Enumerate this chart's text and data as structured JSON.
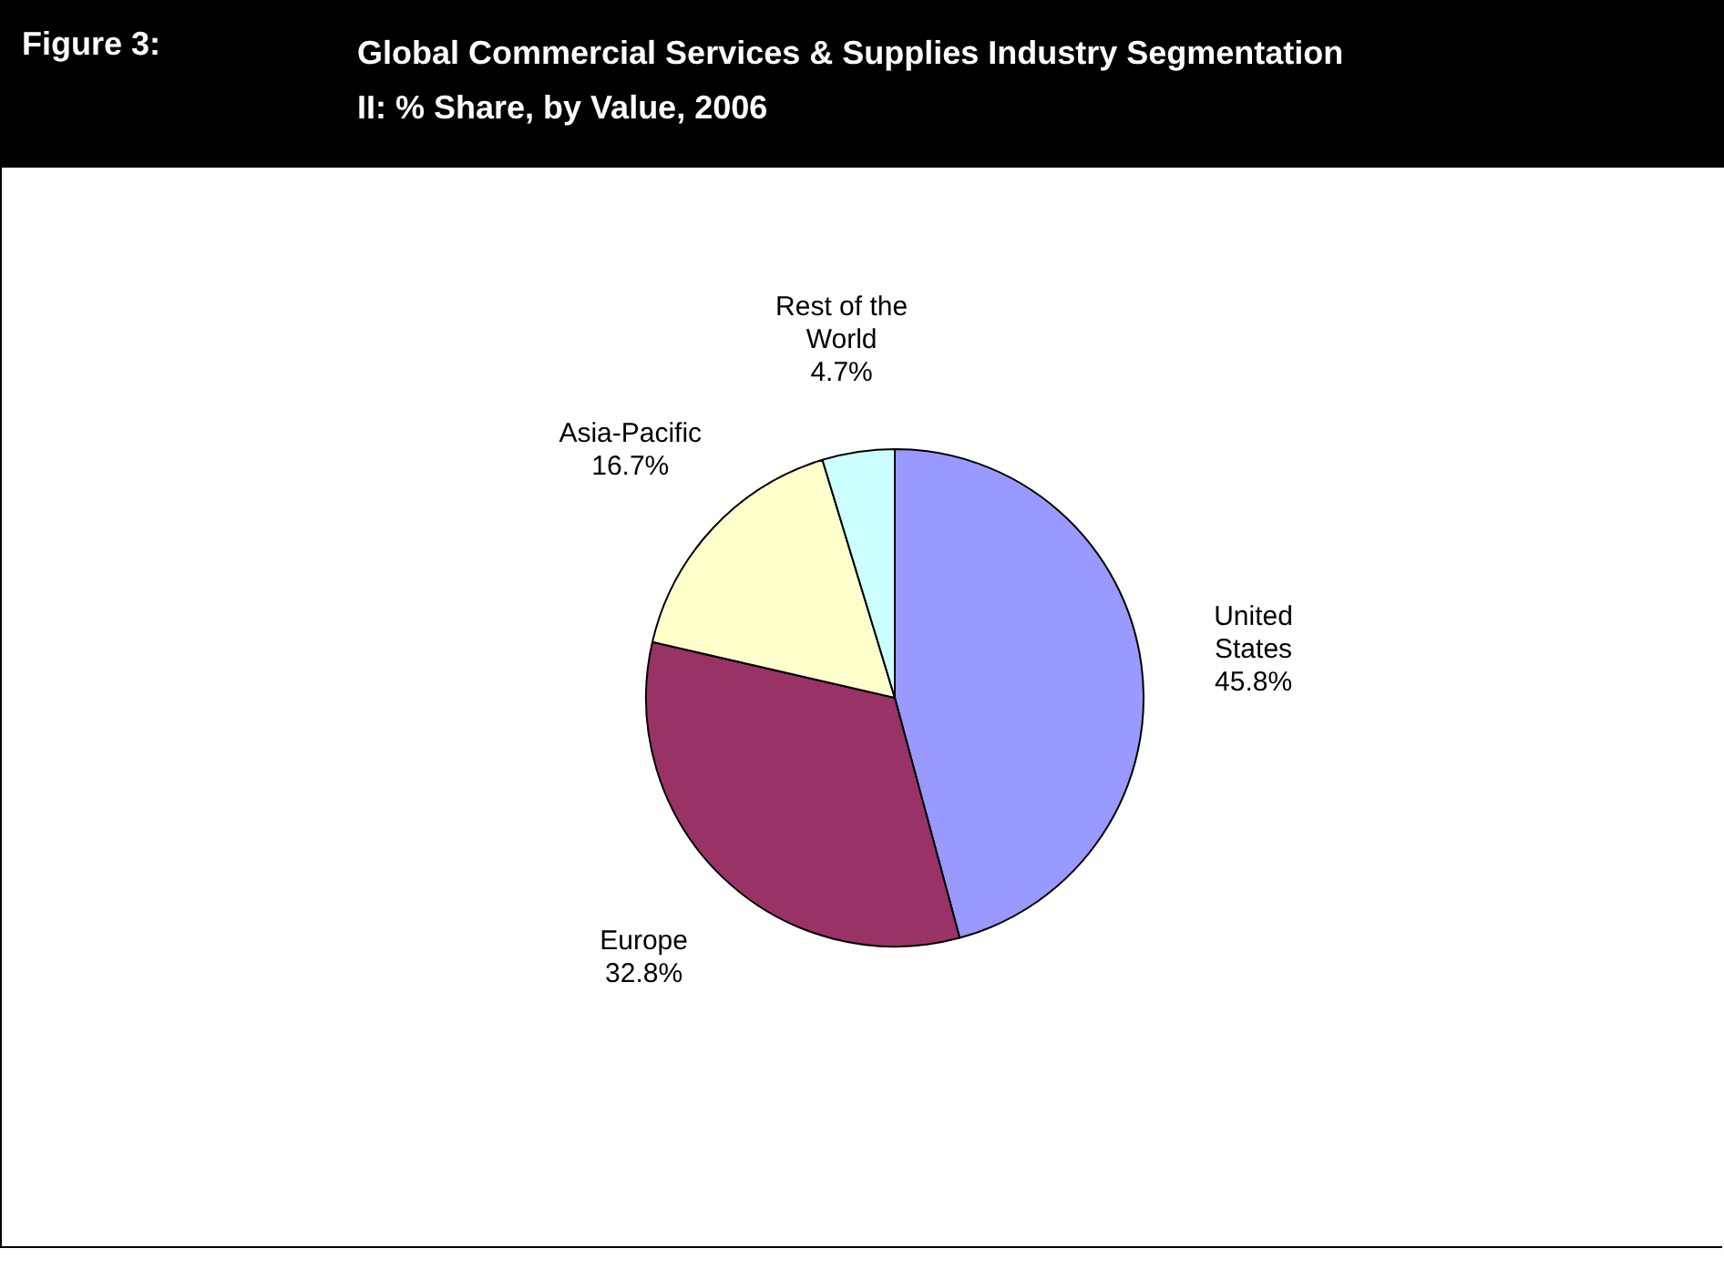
{
  "chart_data": {
    "type": "pie",
    "title": "Figure 3:",
    "subtitle": "Global Commercial Services & Supplies Industry Segmentation II: % Share, by Value, 2006",
    "categories": [
      "United States",
      "Europe",
      "Asia-Pacific",
      "Rest of the World"
    ],
    "values": [
      45.8,
      32.8,
      16.7,
      4.7
    ],
    "colors": [
      "#9999ff",
      "#993366",
      "#ffffcc",
      "#ccffff"
    ],
    "value_labels": [
      "45.8%",
      "32.8%",
      "16.7%",
      "4.7%"
    ],
    "legend": false
  }
}
